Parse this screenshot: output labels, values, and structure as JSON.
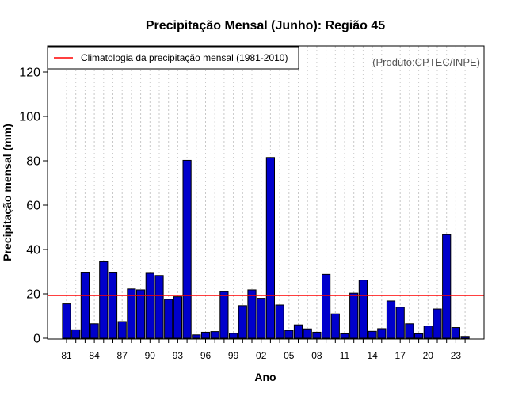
{
  "chart_data": {
    "type": "bar",
    "title": "Precipitação Mensal (Junho): Região 45",
    "xlabel": "Ano",
    "ylabel": "Precipitação mensal (mm)",
    "credit": "(Produto:CPTEC/INPE)",
    "ylim": [
      0,
      130
    ],
    "yticks": [
      0,
      20,
      40,
      60,
      80,
      100,
      120
    ],
    "categories": [
      "81",
      "82",
      "83",
      "84",
      "85",
      "86",
      "87",
      "88",
      "89",
      "90",
      "91",
      "92",
      "93",
      "94",
      "95",
      "96",
      "97",
      "98",
      "99",
      "00",
      "01",
      "02",
      "03",
      "04",
      "05",
      "06",
      "07",
      "08",
      "09",
      "10",
      "11",
      "12",
      "13",
      "14",
      "15",
      "16",
      "17",
      "18",
      "19",
      "20",
      "21",
      "22",
      "23",
      "24"
    ],
    "xtick_labels": [
      "81",
      "84",
      "87",
      "90",
      "93",
      "96",
      "99",
      "02",
      "05",
      "08",
      "11",
      "14",
      "17",
      "20",
      "23"
    ],
    "values": [
      15.5,
      3.8,
      29.5,
      6.5,
      34.5,
      29.5,
      7.5,
      22.2,
      21.8,
      29.3,
      28.3,
      17.5,
      18.7,
      80.2,
      1.5,
      2.7,
      3.0,
      21.0,
      2.2,
      14.7,
      21.8,
      18.0,
      81.5,
      15.0,
      3.5,
      6.0,
      4.2,
      2.7,
      28.8,
      11.0,
      2.0,
      20.3,
      26.2,
      3.1,
      4.3,
      16.8,
      14.0,
      6.5,
      2.0,
      5.5,
      13.2,
      46.7,
      4.8,
      0.8
    ],
    "bar_color": "#0000CC",
    "climatology": {
      "label": "Climatologia da precipitação mensal (1981-2010)",
      "value": 19.3,
      "color": "#FF0000"
    },
    "legend_position": "top-left",
    "grid": "vertical dotted"
  }
}
